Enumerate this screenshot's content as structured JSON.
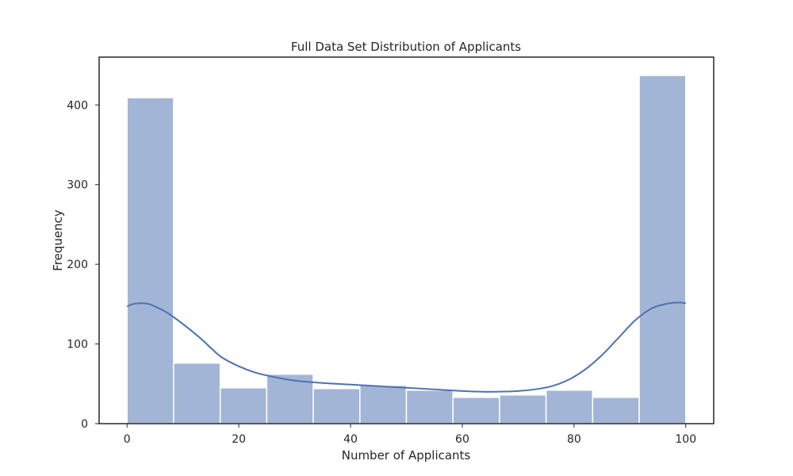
{
  "chart_data": {
    "type": "histogram",
    "title": "Full Data Set Distribution of Applicants",
    "xlabel": "Number of Applicants",
    "ylabel": "Frequency",
    "xlim": [
      -5,
      105
    ],
    "ylim": [
      0,
      460
    ],
    "x_ticks": [
      "0",
      "20",
      "40",
      "60",
      "80",
      "100"
    ],
    "y_ticks": [
      "0",
      "100",
      "200",
      "300",
      "400"
    ],
    "grid": false,
    "bins": [
      {
        "start": 0,
        "end": 8.33,
        "count": 409
      },
      {
        "start": 8.33,
        "end": 16.67,
        "count": 76
      },
      {
        "start": 16.67,
        "end": 25,
        "count": 45
      },
      {
        "start": 25,
        "end": 33.33,
        "count": 62
      },
      {
        "start": 33.33,
        "end": 41.67,
        "count": 44
      },
      {
        "start": 41.67,
        "end": 50,
        "count": 48
      },
      {
        "start": 50,
        "end": 58.33,
        "count": 42
      },
      {
        "start": 58.33,
        "end": 66.67,
        "count": 33
      },
      {
        "start": 66.67,
        "end": 75,
        "count": 36
      },
      {
        "start": 75,
        "end": 83.33,
        "count": 42
      },
      {
        "start": 83.33,
        "end": 91.67,
        "count": 33
      },
      {
        "start": 91.67,
        "end": 100,
        "count": 437
      }
    ],
    "kde_curve": [
      [
        0,
        147
      ],
      [
        1,
        150
      ],
      [
        2,
        151
      ],
      [
        3,
        151
      ],
      [
        4,
        150
      ],
      [
        5,
        147
      ],
      [
        7,
        140
      ],
      [
        10,
        125
      ],
      [
        13,
        108
      ],
      [
        15,
        95
      ],
      [
        17,
        83
      ],
      [
        20,
        72
      ],
      [
        23,
        64
      ],
      [
        26,
        59
      ],
      [
        30,
        54
      ],
      [
        35,
        51
      ],
      [
        40,
        49
      ],
      [
        45,
        47
      ],
      [
        50,
        45
      ],
      [
        55,
        43
      ],
      [
        60,
        41
      ],
      [
        65,
        40
      ],
      [
        70,
        41
      ],
      [
        73,
        43
      ],
      [
        76,
        47
      ],
      [
        79,
        55
      ],
      [
        82,
        68
      ],
      [
        85,
        86
      ],
      [
        88,
        108
      ],
      [
        91,
        130
      ],
      [
        94,
        145
      ],
      [
        97,
        151
      ],
      [
        99,
        152
      ],
      [
        100,
        151
      ]
    ],
    "colors": {
      "bar_fill": "#a3b5d6",
      "bar_edge": "#ffffff",
      "kde_line": "#4c72b0",
      "axis": "#262626"
    }
  }
}
